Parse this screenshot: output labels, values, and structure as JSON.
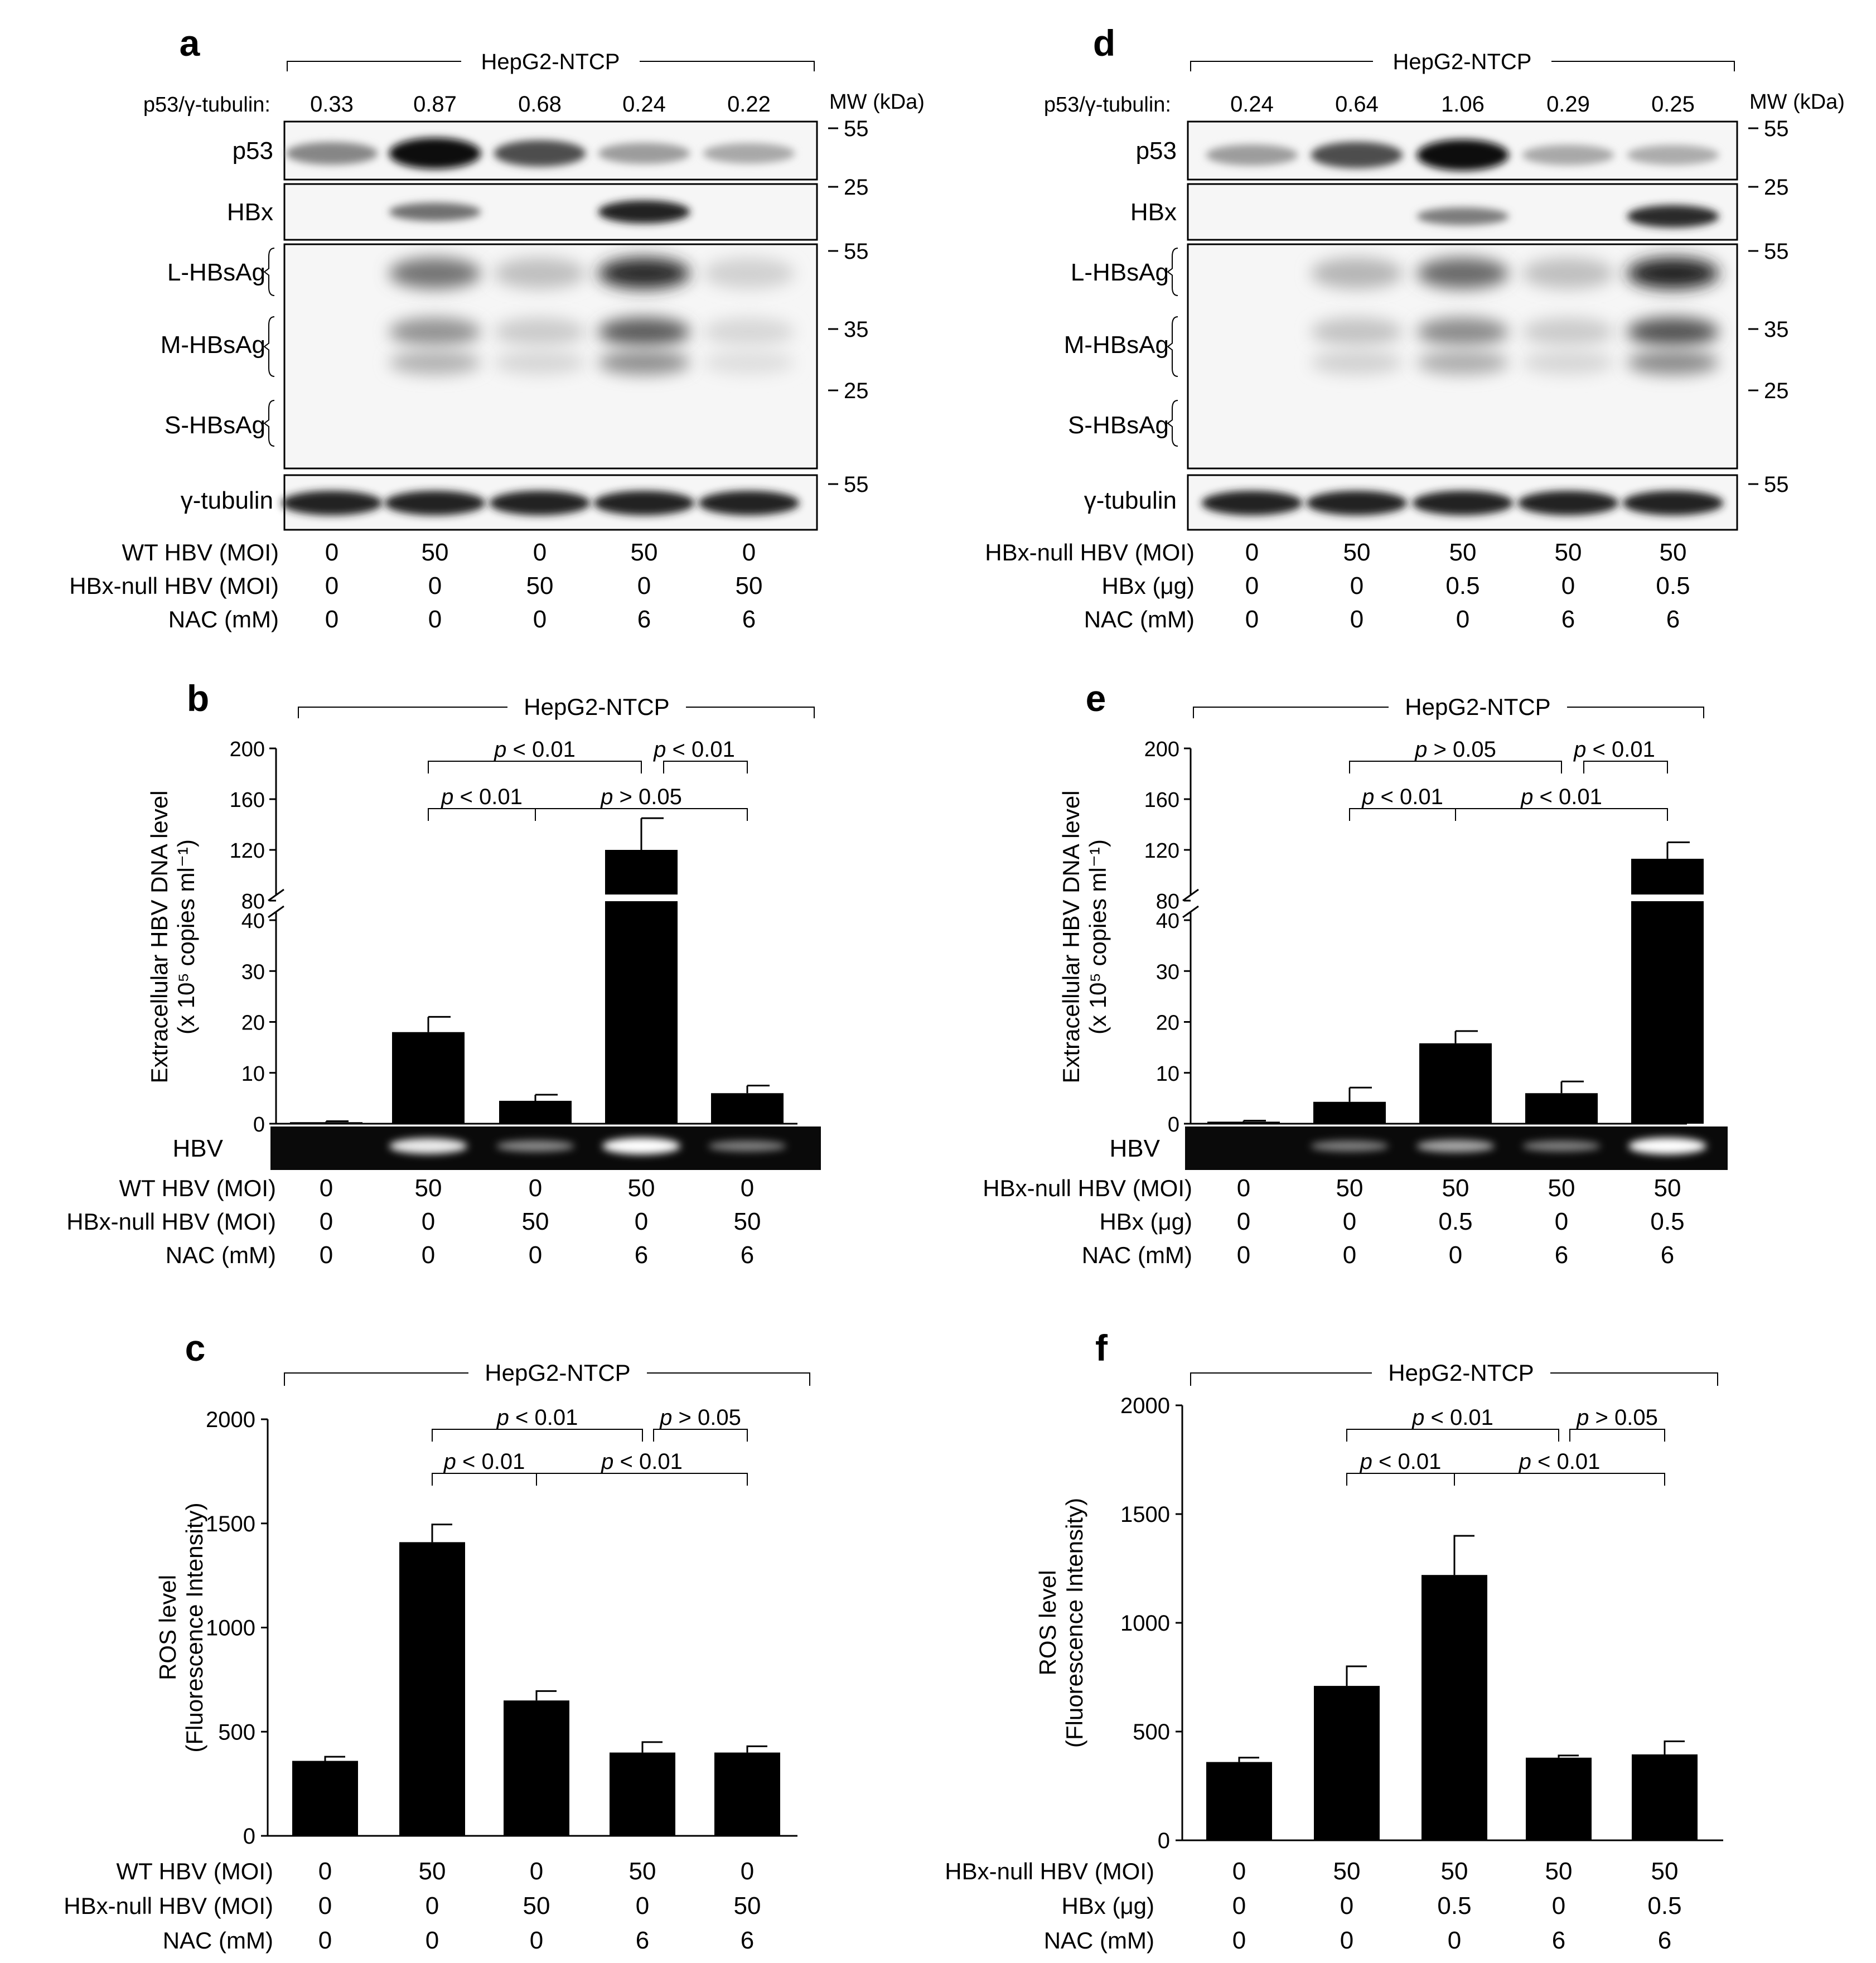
{
  "blot_common": {
    "header": "HepG2-NTCP",
    "ratio_label": "p53/γ-tubulin:",
    "mw_label": "MW (kDa)",
    "rows": [
      "p53",
      "HBx",
      "L-HBsAg",
      "M-HBsAg",
      "S-HBsAg",
      "γ-tubulin"
    ]
  },
  "panels": {
    "a": {
      "letter": "a",
      "ratios": [
        "0.33",
        "0.87",
        "0.68",
        "0.24",
        "0.22"
      ],
      "mw_ticks": [
        "55",
        "25",
        "55",
        "35",
        "25",
        "55"
      ],
      "p53_intensity": [
        0.45,
        1.0,
        0.7,
        0.35,
        0.3
      ],
      "hbx_intensity": [
        0,
        0.55,
        0,
        0.9,
        0
      ],
      "hbsag_intensity": [
        0,
        0.55,
        0.2,
        0.9,
        0.12
      ],
      "tubulin_intensity": [
        0.9,
        0.9,
        0.9,
        0.9,
        0.9
      ],
      "conditions": [
        {
          "label": "WT HBV (MOI)",
          "values": [
            "0",
            "50",
            "0",
            "50",
            "0"
          ]
        },
        {
          "label": "HBx-null HBV (MOI)",
          "values": [
            "0",
            "0",
            "50",
            "0",
            "50"
          ]
        },
        {
          "label": "NAC (mM)",
          "values": [
            "0",
            "0",
            "0",
            "6",
            "6"
          ]
        }
      ]
    },
    "d": {
      "letter": "d",
      "ratios": [
        "0.24",
        "0.64",
        "1.06",
        "0.29",
        "0.25"
      ],
      "mw_ticks": [
        "55",
        "25",
        "55",
        "35",
        "25",
        "55"
      ],
      "p53_intensity": [
        0.35,
        0.7,
        1.0,
        0.3,
        0.28
      ],
      "hbx_intensity": [
        0,
        0,
        0.5,
        0,
        0.85
      ],
      "hbsag_intensity": [
        0,
        0.25,
        0.6,
        0.2,
        0.95
      ],
      "tubulin_intensity": [
        0.9,
        0.9,
        0.9,
        0.9,
        0.9
      ],
      "conditions": [
        {
          "label": "HBx-null HBV (MOI)",
          "values": [
            "0",
            "50",
            "50",
            "50",
            "50"
          ]
        },
        {
          "label": "HBx (μg)",
          "values": [
            "0",
            "0",
            "0.5",
            "0",
            "0.5"
          ]
        },
        {
          "label": "NAC (mM)",
          "values": [
            "0",
            "0",
            "0",
            "6",
            "6"
          ]
        }
      ]
    },
    "b": {
      "letter": "b",
      "header": "HepG2-NTCP",
      "ylabel_line1": "Extracellular HBV DNA level",
      "ylabel_line2": "(x 10⁵ copies ml⁻¹)",
      "lower_ticks": [
        "0",
        "10",
        "20",
        "30",
        "40"
      ],
      "upper_ticks": [
        "80",
        "120",
        "160",
        "200"
      ],
      "gel_label": "HBV",
      "gel_intensity": [
        0,
        0.9,
        0.4,
        1.0,
        0.35
      ],
      "brackets": [
        {
          "text": "p < 0.01",
          "from": 1,
          "to": 3,
          "tier": 2
        },
        {
          "text": "p < 0.01",
          "from": 3,
          "to": 4,
          "tier": 2
        },
        {
          "text": "p < 0.01",
          "from": 1,
          "to": 2,
          "tier": 1
        },
        {
          "text": "p > 0.05",
          "from": 2,
          "to": 4,
          "tier": 1
        }
      ],
      "conditions": [
        {
          "label": "WT HBV (MOI)",
          "values": [
            "0",
            "50",
            "0",
            "50",
            "0"
          ]
        },
        {
          "label": "HBx-null HBV (MOI)",
          "values": [
            "0",
            "0",
            "50",
            "0",
            "50"
          ]
        },
        {
          "label": "NAC (mM)",
          "values": [
            "0",
            "0",
            "0",
            "6",
            "6"
          ]
        }
      ]
    },
    "e": {
      "letter": "e",
      "header": "HepG2-NTCP",
      "ylabel_line1": "Extracellular HBV DNA level",
      "ylabel_line2": "(x 10⁵ copies ml⁻¹)",
      "lower_ticks": [
        "0",
        "10",
        "20",
        "30",
        "40"
      ],
      "upper_ticks": [
        "80",
        "120",
        "160",
        "200"
      ],
      "gel_label": "HBV",
      "gel_intensity": [
        0,
        0.35,
        0.55,
        0.35,
        1.0
      ],
      "brackets": [
        {
          "text": "p > 0.05",
          "from": 1,
          "to": 3,
          "tier": 2
        },
        {
          "text": "p < 0.01",
          "from": 3,
          "to": 4,
          "tier": 2
        },
        {
          "text": "p < 0.01",
          "from": 1,
          "to": 2,
          "tier": 1
        },
        {
          "text": "p < 0.01",
          "from": 2,
          "to": 4,
          "tier": 1
        }
      ],
      "conditions": [
        {
          "label": "HBx-null HBV (MOI)",
          "values": [
            "0",
            "50",
            "50",
            "50",
            "50"
          ]
        },
        {
          "label": "HBx (μg)",
          "values": [
            "0",
            "0",
            "0.5",
            "0",
            "0.5"
          ]
        },
        {
          "label": "NAC (mM)",
          "values": [
            "0",
            "0",
            "0",
            "6",
            "6"
          ]
        }
      ]
    },
    "c": {
      "letter": "c",
      "header": "HepG2-NTCP",
      "ylabel_line1": "ROS level",
      "ylabel_line2": "(Fluorescence Intensity)",
      "ticks": [
        "0",
        "500",
        "1000",
        "1500",
        "2000"
      ],
      "brackets": [
        {
          "text": "p < 0.01",
          "from": 1,
          "to": 3,
          "tier": 2
        },
        {
          "text": "p > 0.05",
          "from": 3,
          "to": 4,
          "tier": 2
        },
        {
          "text": "p < 0.01",
          "from": 1,
          "to": 2,
          "tier": 1
        },
        {
          "text": "p < 0.01",
          "from": 2,
          "to": 4,
          "tier": 1
        }
      ],
      "conditions": [
        {
          "label": "WT HBV (MOI)",
          "values": [
            "0",
            "50",
            "0",
            "50",
            "0"
          ]
        },
        {
          "label": "HBx-null HBV (MOI)",
          "values": [
            "0",
            "0",
            "50",
            "0",
            "50"
          ]
        },
        {
          "label": "NAC (mM)",
          "values": [
            "0",
            "0",
            "0",
            "6",
            "6"
          ]
        }
      ]
    },
    "f": {
      "letter": "f",
      "header": "HepG2-NTCP",
      "ylabel_line1": "ROS level",
      "ylabel_line2": "(Fluorescence Intensity)",
      "ticks": [
        "0",
        "500",
        "1000",
        "1500",
        "2000"
      ],
      "brackets": [
        {
          "text": "p < 0.01",
          "from": 1,
          "to": 3,
          "tier": 2
        },
        {
          "text": "p > 0.05",
          "from": 3,
          "to": 4,
          "tier": 2
        },
        {
          "text": "p < 0.01",
          "from": 1,
          "to": 2,
          "tier": 1
        },
        {
          "text": "p < 0.01",
          "from": 2,
          "to": 4,
          "tier": 1
        }
      ],
      "conditions": [
        {
          "label": "HBx-null HBV (MOI)",
          "values": [
            "0",
            "50",
            "50",
            "50",
            "50"
          ]
        },
        {
          "label": "HBx (μg)",
          "values": [
            "0",
            "0",
            "0.5",
            "0",
            "0.5"
          ]
        },
        {
          "label": "NAC (mM)",
          "values": [
            "0",
            "0",
            "0",
            "6",
            "6"
          ]
        }
      ]
    }
  },
  "chart_data": [
    {
      "panel": "b",
      "type": "bar",
      "categories": [
        "1",
        "2",
        "3",
        "4",
        "5"
      ],
      "values": [
        0.3,
        18,
        4.5,
        120,
        6
      ],
      "errors": [
        0.2,
        3,
        1.2,
        25,
        1.5
      ],
      "ylabel": "Extracellular HBV DNA level (x 10⁵ copies ml⁻¹)",
      "ylim": [
        0,
        200
      ],
      "axis_break": [
        40,
        80
      ]
    },
    {
      "panel": "e",
      "type": "bar",
      "categories": [
        "1",
        "2",
        "3",
        "4",
        "5"
      ],
      "values": [
        0.4,
        4.3,
        15.8,
        6,
        113
      ],
      "errors": [
        0.2,
        2.8,
        2.4,
        2.3,
        13
      ],
      "ylabel": "Extracellular HBV DNA level (x 10⁵ copies ml⁻¹)",
      "ylim": [
        0,
        200
      ],
      "axis_break": [
        40,
        80
      ]
    },
    {
      "panel": "c",
      "type": "bar",
      "categories": [
        "1",
        "2",
        "3",
        "4",
        "5"
      ],
      "values": [
        360,
        1410,
        650,
        400,
        400
      ],
      "errors": [
        20,
        85,
        45,
        50,
        30
      ],
      "ylabel": "ROS level (Fluorescence Intensity)",
      "ylim": [
        0,
        2000
      ]
    },
    {
      "panel": "f",
      "type": "bar",
      "categories": [
        "1",
        "2",
        "3",
        "4",
        "5"
      ],
      "values": [
        360,
        710,
        1220,
        380,
        395
      ],
      "errors": [
        20,
        90,
        180,
        10,
        60
      ],
      "ylabel": "ROS level (Fluorescence Intensity)",
      "ylim": [
        0,
        2000
      ]
    }
  ]
}
